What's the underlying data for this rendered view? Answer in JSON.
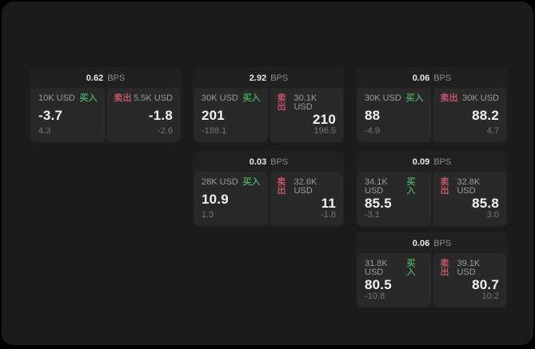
{
  "colors": {
    "window_bg": "#1b1b1c",
    "card_bg": "#202021",
    "panel_bg": "#29292a",
    "buy_green": "#46a05e",
    "sell_red": "#c05568"
  },
  "labels": {
    "bps_unit": "BPS",
    "buy_action": "买入",
    "sell_action": "卖出"
  },
  "cards": [
    {
      "bps": "0.62",
      "buy": {
        "size": "10K USD",
        "price": "-3.7",
        "delta": "4.3"
      },
      "sell": {
        "size": "5.5K USD",
        "price": "-1.8",
        "delta": "-2.6"
      }
    },
    {
      "bps": "2.92",
      "buy": {
        "size": "30K USD",
        "price": "201",
        "delta": "-188.1"
      },
      "sell": {
        "size": "30.1K USD",
        "price": "210",
        "delta": "196.5"
      }
    },
    {
      "bps": "0.06",
      "buy": {
        "size": "30K USD",
        "price": "88",
        "delta": "-4.9"
      },
      "sell": {
        "size": "30K USD",
        "price": "88.2",
        "delta": "4.7"
      }
    },
    {
      "bps": "0.03",
      "buy": {
        "size": "28K USD",
        "price": "10.9",
        "delta": "1.3"
      },
      "sell": {
        "size": "32.6K USD",
        "price": "11",
        "delta": "-1.8"
      }
    },
    {
      "bps": "0.09",
      "buy": {
        "size": "34.1K USD",
        "price": "85.5",
        "delta": "-3.1"
      },
      "sell": {
        "size": "32.8K USD",
        "price": "85.8",
        "delta": "3.0"
      }
    },
    {
      "bps": "0.06",
      "buy": {
        "size": "31.8K USD",
        "price": "80.5",
        "delta": "-10.8"
      },
      "sell": {
        "size": "39.1K USD",
        "price": "80.7",
        "delta": "10.2"
      }
    }
  ]
}
